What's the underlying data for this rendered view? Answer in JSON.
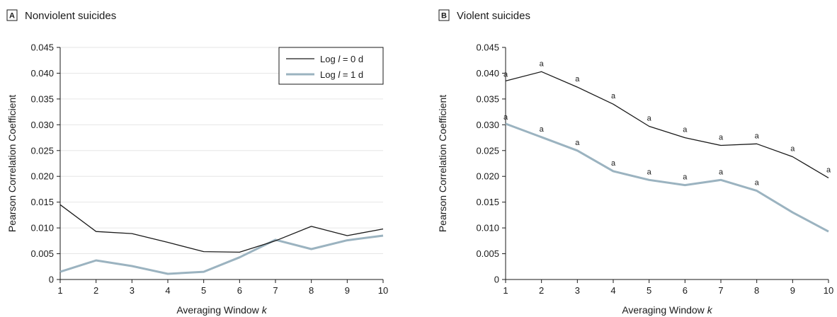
{
  "colors": {
    "lag0": "#1a1a1a",
    "lag1": "#9bb3c0",
    "axis": "#1a1a1a",
    "grid": "#e6e6e6"
  },
  "chart_data": [
    {
      "panel_letter": "A",
      "title": "Nonviolent suicides",
      "type": "line",
      "xlabel": "Averaging Window k",
      "ylabel": "Pearson Correlation Coefficient",
      "x": [
        1,
        2,
        3,
        4,
        5,
        6,
        7,
        8,
        9,
        10
      ],
      "ylim": [
        0,
        0.045
      ],
      "yticks": [
        0,
        0.005,
        0.01,
        0.015,
        0.02,
        0.025,
        0.03,
        0.035,
        0.04,
        0.045
      ],
      "ytick_labels": [
        "0",
        "0.005",
        "0.010",
        "0.015",
        "0.020",
        "0.025",
        "0.030",
        "0.035",
        "0.040",
        "0.045"
      ],
      "grid": true,
      "legend_position": "top-right",
      "series": [
        {
          "key": "lag0",
          "name_prefix": "Log ",
          "name_var": "l",
          "name_suffix": " = 0 d",
          "values": [
            0.0145,
            0.0093,
            0.0089,
            0.0072,
            0.0054,
            0.0053,
            0.0075,
            0.0103,
            0.0085,
            0.0098
          ],
          "significant": [
            false,
            false,
            false,
            false,
            false,
            false,
            false,
            false,
            false,
            false
          ]
        },
        {
          "key": "lag1",
          "name_prefix": "Log ",
          "name_var": "l",
          "name_suffix": " = 1 d",
          "values": [
            0.0015,
            0.0037,
            0.0026,
            0.0011,
            0.0015,
            0.0043,
            0.0077,
            0.0059,
            0.0076,
            0.0085
          ],
          "significant": [
            false,
            false,
            false,
            false,
            false,
            false,
            false,
            false,
            false,
            false
          ]
        }
      ]
    },
    {
      "panel_letter": "B",
      "title": "Violent suicides",
      "type": "line",
      "xlabel": "Averaging Window k",
      "ylabel": "Pearson Correlation Coefficient",
      "x": [
        1,
        2,
        3,
        4,
        5,
        6,
        7,
        8,
        9,
        10
      ],
      "ylim": [
        0,
        0.045
      ],
      "yticks": [
        0,
        0.005,
        0.01,
        0.015,
        0.02,
        0.025,
        0.03,
        0.035,
        0.04,
        0.045
      ],
      "ytick_labels": [
        "0",
        "0.005",
        "0.010",
        "0.015",
        "0.020",
        "0.025",
        "0.030",
        "0.035",
        "0.040",
        "0.045"
      ],
      "grid": false,
      "significance_marker": "a",
      "series": [
        {
          "key": "lag0",
          "values": [
            0.0385,
            0.0403,
            0.0373,
            0.034,
            0.0297,
            0.0275,
            0.026,
            0.0263,
            0.0238,
            0.0197
          ],
          "significant": [
            true,
            true,
            true,
            true,
            true,
            true,
            true,
            true,
            true,
            true
          ]
        },
        {
          "key": "lag1",
          "values": [
            0.0302,
            0.0276,
            0.025,
            0.021,
            0.0193,
            0.0183,
            0.0193,
            0.0172,
            0.013,
            0.0093
          ],
          "significant": [
            true,
            true,
            true,
            true,
            true,
            true,
            true,
            true,
            false,
            false
          ]
        }
      ]
    }
  ]
}
